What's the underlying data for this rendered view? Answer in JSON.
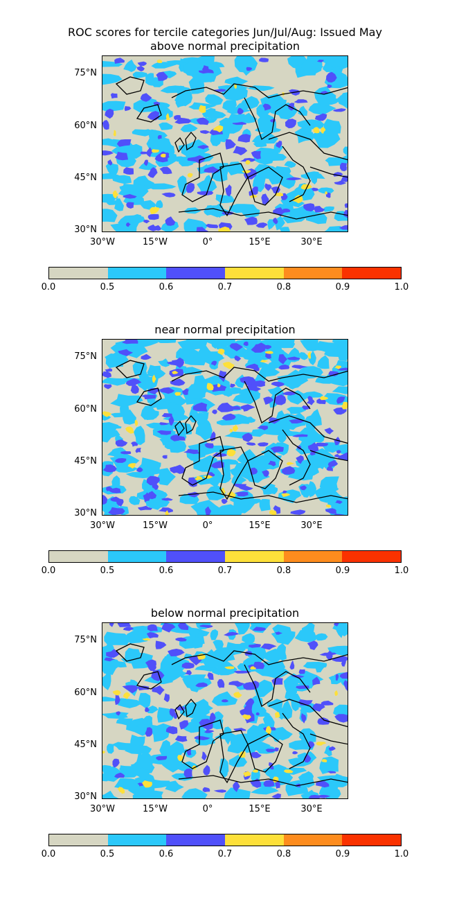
{
  "suptitle": "ROC scores for tercile categories Jun/Jul/Aug: Issued May",
  "lat_ticks": [
    "75°N",
    "60°N",
    "45°N",
    "30°N"
  ],
  "lon_ticks": [
    "30°W",
    "15°W",
    "0°",
    "15°E",
    "30°E"
  ],
  "colorbar": {
    "boundaries": [
      "0.0",
      "0.5",
      "0.6",
      "0.7",
      "0.8",
      "0.9",
      "1.0"
    ],
    "colors": [
      "#d6d6c2",
      "#2bc8fa",
      "#5050fa",
      "#fde03a",
      "#fd8c1e",
      "#fa3200"
    ]
  },
  "panels": [
    {
      "title": "above normal precipitation"
    },
    {
      "title": "near normal precipitation"
    },
    {
      "title": "below normal precipitation"
    }
  ]
}
